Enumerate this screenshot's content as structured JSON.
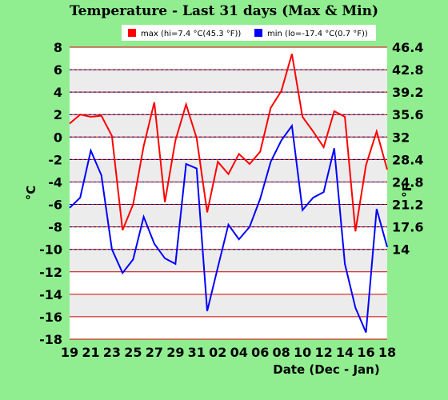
{
  "chart_data": {
    "type": "line",
    "title": "Temperature - Last 31 days (Max & Min)",
    "xlabel": "Date (Dec - Jan)",
    "ylabel_left": "°C",
    "ylabel_right": "°F",
    "ylim": [
      -18,
      8
    ],
    "y_ticks_c": [
      "8",
      "6",
      "4",
      "2",
      "0",
      "-2",
      "-4",
      "-6",
      "-8",
      "-10",
      "-12",
      "-14",
      "-16",
      "-18"
    ],
    "y_ticks_f": [
      "46.4",
      "42.8",
      "39.2",
      "35.6",
      "32",
      "28.4",
      "24.8",
      "21.2",
      "17.6",
      "14"
    ],
    "x_tick_labels": [
      "19",
      "21",
      "23",
      "25",
      "27",
      "29",
      "31",
      "02",
      "04",
      "06",
      "08",
      "10",
      "12",
      "14",
      "16",
      "18"
    ],
    "grid": true,
    "legend_position": "top",
    "colors": {
      "max": "#ff0000",
      "min": "#0000ff",
      "plot_bg": "#ffffff",
      "band": "#ececec",
      "grid_c": "#cc0000",
      "grid_f": "#000080",
      "page_bg": "#90ee90"
    },
    "series": [
      {
        "name": "max (hi=7.4 °C(45.3 °F))",
        "values": [
          1.2,
          2.0,
          1.8,
          1.9,
          0.1,
          -8.3,
          -6.0,
          -0.8,
          3.1,
          -5.8,
          -0.3,
          2.9,
          -0.1,
          -6.7,
          -2.2,
          -3.3,
          -1.5,
          -2.4,
          -1.3,
          2.6,
          4.1,
          7.4,
          1.8,
          0.5,
          -0.9,
          2.3,
          1.8,
          -8.4,
          -2.5,
          0.5,
          -2.9
        ]
      },
      {
        "name": "min (lo=-17.4 °C(0.7 °F))",
        "values": [
          -6.3,
          -5.4,
          -1.2,
          -3.4,
          -10.0,
          -12.1,
          -10.9,
          -7.1,
          -9.5,
          -10.8,
          -11.3,
          -2.4,
          -2.8,
          -15.5,
          -11.6,
          -7.8,
          -9.1,
          -8.0,
          -5.5,
          -2.2,
          -0.3,
          1.0,
          -6.5,
          -5.4,
          -4.9,
          -1.0,
          -11.3,
          -15.2,
          -17.4,
          -6.4,
          -9.8
        ]
      }
    ]
  }
}
